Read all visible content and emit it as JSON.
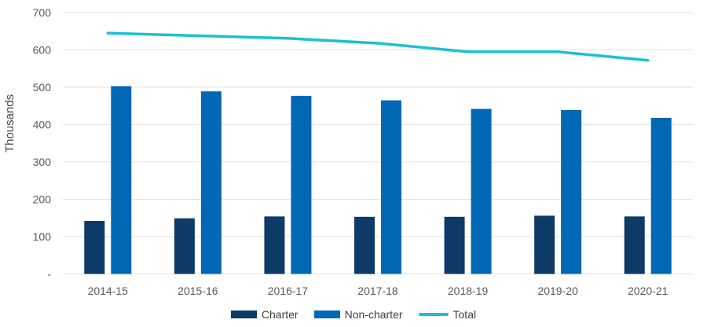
{
  "chart_data": {
    "type": "bar",
    "title": "",
    "ylabel": "Thousands",
    "xlabel": "",
    "categories": [
      "2014-15",
      "2015-16",
      "2016-17",
      "2017-18",
      "2018-19",
      "2019-20",
      "2020-21"
    ],
    "series": [
      {
        "name": "Charter",
        "type": "bar",
        "color": "#0d3a66",
        "values": [
          142,
          149,
          154,
          153,
          153,
          156,
          154
        ]
      },
      {
        "name": "Non-charter",
        "type": "bar",
        "color": "#0068b4",
        "values": [
          503,
          489,
          477,
          465,
          442,
          439,
          418
        ]
      },
      {
        "name": "Total",
        "type": "line",
        "color": "#1bc2ce",
        "values": [
          645,
          638,
          631,
          618,
          595,
          595,
          572
        ]
      }
    ],
    "ylim": [
      0,
      700
    ],
    "ytick_step": 100,
    "ytick_labels": [
      "-",
      "100",
      "200",
      "300",
      "400",
      "500",
      "600",
      "700"
    ],
    "grid": true,
    "legend_position": "bottom"
  },
  "colors": {
    "gridline": "#e2e2e2",
    "axis_text": "#595959",
    "y_axis_title_text": "#474747",
    "legend_text": "#3f3f3f",
    "background": "#ffffff"
  }
}
